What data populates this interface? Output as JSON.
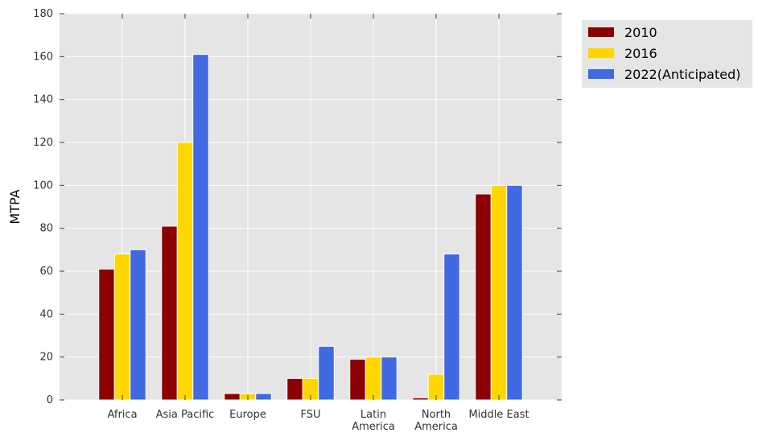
{
  "chart_data": {
    "type": "bar",
    "title": "",
    "xlabel": "",
    "ylabel": "MTPA",
    "ylim": [
      0,
      180
    ],
    "yticks": [
      0,
      20,
      40,
      60,
      80,
      100,
      120,
      140,
      160,
      180
    ],
    "grid": true,
    "legend_position": "outside-right-top",
    "categories": [
      [
        "Africa"
      ],
      [
        "Asia Pacific"
      ],
      [
        "Europe"
      ],
      [
        "FSU"
      ],
      [
        "Latin",
        "America"
      ],
      [
        "North",
        "America"
      ],
      [
        "Middle East"
      ]
    ],
    "series": [
      {
        "name": "2010",
        "color": "#8b0000",
        "values": [
          61,
          81,
          3,
          10,
          19,
          1,
          96
        ]
      },
      {
        "name": "2016",
        "color": "#ffd700",
        "values": [
          68,
          120,
          3,
          10,
          20,
          12,
          100
        ]
      },
      {
        "name": "2022(Anticipated)",
        "color": "#4169e1",
        "values": [
          70,
          161,
          3,
          25,
          20,
          68,
          100
        ]
      }
    ]
  },
  "colors": {
    "plot_background": "#e5e5e5",
    "grid": "#ffffff",
    "legend_background": "#e5e5e5"
  }
}
